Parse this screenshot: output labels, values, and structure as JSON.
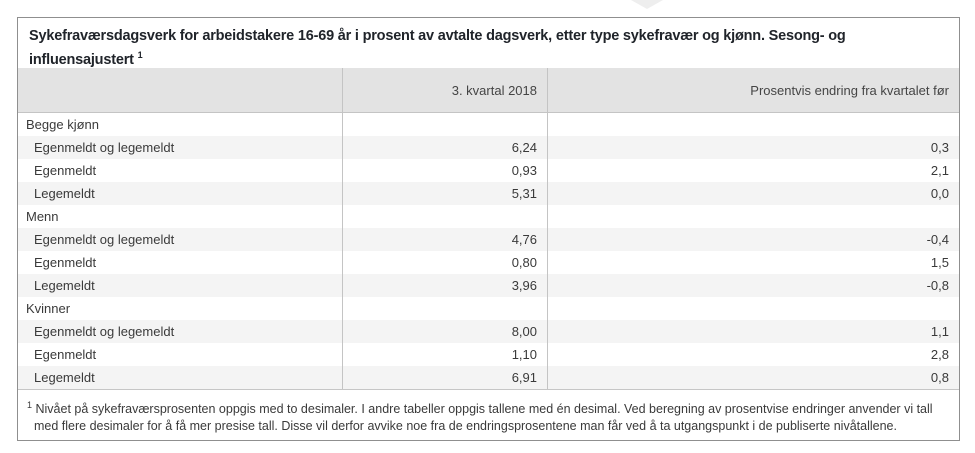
{
  "decorations": {
    "top_icon": "chevron-down-icon"
  },
  "colors": {
    "panel_border": "#8f8f8f",
    "header_bg": "#e3e3e3",
    "stripe_bg": "#f4f4f4",
    "inner_line": "#c4c4c4",
    "title_text": "#20242a",
    "body_text": "#3a3a3a"
  },
  "table": {
    "title": "Sykefraværsdagsverk for arbeidstakere 16-69 år i prosent av avtalte dagsverk, etter type sykefravær og kjønn. Sesong- og influensajustert",
    "title_marker": "1",
    "columns": [
      "",
      "3. kvartal 2018",
      "Prosentvis endring fra kvartalet før"
    ],
    "groups": [
      {
        "label": "Begge kjønn",
        "rows": [
          {
            "label": "Egenmeldt og legemeldt",
            "value": "6,24",
            "change": "0,3"
          },
          {
            "label": "Egenmeldt",
            "value": "0,93",
            "change": "2,1"
          },
          {
            "label": "Legemeldt",
            "value": "5,31",
            "change": "0,0"
          }
        ]
      },
      {
        "label": "Menn",
        "rows": [
          {
            "label": "Egenmeldt og legemeldt",
            "value": "4,76",
            "change": "-0,4"
          },
          {
            "label": "Egenmeldt",
            "value": "0,80",
            "change": "1,5"
          },
          {
            "label": "Legemeldt",
            "value": "3,96",
            "change": "-0,8"
          }
        ]
      },
      {
        "label": "Kvinner",
        "rows": [
          {
            "label": "Egenmeldt og legemeldt",
            "value": "8,00",
            "change": "1,1"
          },
          {
            "label": "Egenmeldt",
            "value": "1,10",
            "change": "2,8"
          },
          {
            "label": "Legemeldt",
            "value": "6,91",
            "change": "0,8"
          }
        ]
      }
    ],
    "footnote": {
      "marker": "1",
      "text": "Nivået på sykefraværsprosenten oppgis med to desimaler. I andre tabeller oppgis tallene med én desimal. Ved beregning av prosentvise endringer anvender vi tall med flere desimaler for å få mer presise tall. Disse vil derfor avvike noe fra de endringsprosentene man får ved å ta utgangspunkt i de publiserte nivåtallene."
    }
  },
  "chart_data": {
    "type": "table",
    "title": "Sykefraværsdagsverk for arbeidstakere 16-69 år i prosent av avtalte dagsverk, etter type sykefravær og kjønn. Sesong- og influensajustert",
    "columns": [
      "3. kvartal 2018",
      "Prosentvis endring fra kvartalet før"
    ],
    "rows": [
      {
        "group": "Begge kjønn",
        "category": "Egenmeldt og legemeldt",
        "kvartal_2018_3": 6.24,
        "endring_pct": 0.3
      },
      {
        "group": "Begge kjønn",
        "category": "Egenmeldt",
        "kvartal_2018_3": 0.93,
        "endring_pct": 2.1
      },
      {
        "group": "Begge kjønn",
        "category": "Legemeldt",
        "kvartal_2018_3": 5.31,
        "endring_pct": 0.0
      },
      {
        "group": "Menn",
        "category": "Egenmeldt og legemeldt",
        "kvartal_2018_3": 4.76,
        "endring_pct": -0.4
      },
      {
        "group": "Menn",
        "category": "Egenmeldt",
        "kvartal_2018_3": 0.8,
        "endring_pct": 1.5
      },
      {
        "group": "Menn",
        "category": "Legemeldt",
        "kvartal_2018_3": 3.96,
        "endring_pct": -0.8
      },
      {
        "group": "Kvinner",
        "category": "Egenmeldt og legemeldt",
        "kvartal_2018_3": 8.0,
        "endring_pct": 1.1
      },
      {
        "group": "Kvinner",
        "category": "Egenmeldt",
        "kvartal_2018_3": 1.1,
        "endring_pct": 2.8
      },
      {
        "group": "Kvinner",
        "category": "Legemeldt",
        "kvartal_2018_3": 6.91,
        "endring_pct": 0.8
      }
    ]
  }
}
